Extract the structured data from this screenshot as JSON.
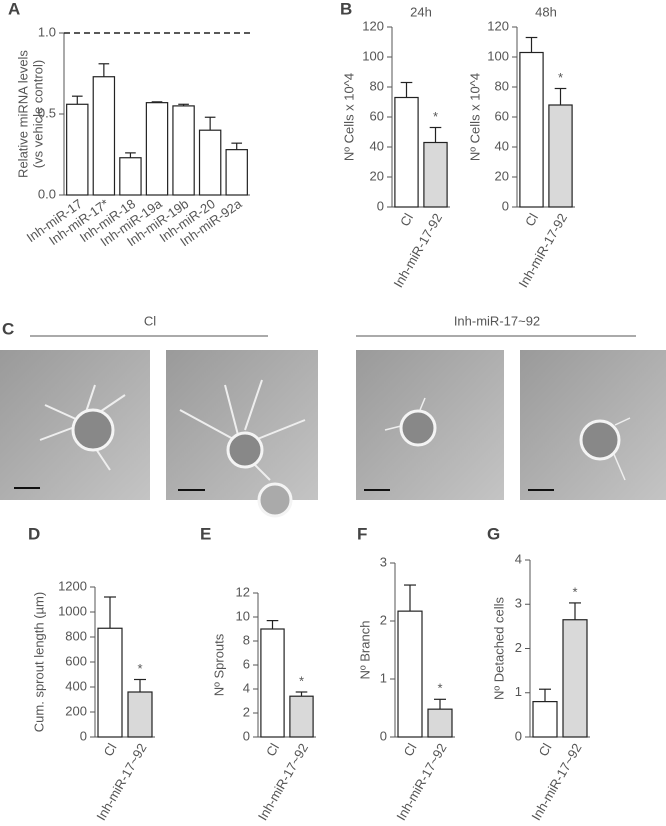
{
  "chart_data": [
    {
      "type": "bar",
      "panel": "A",
      "ylabel": [
        "Relative miRNA levels",
        "(vs vehicle control)"
      ],
      "categories": [
        "Inh-miR-17",
        "Inh-miR-17*",
        "Inh-miR-18",
        "Inh-miR-19a",
        "Inh-miR-19b",
        "Inh-miR-20",
        "Inh-miR-92a"
      ],
      "values": [
        0.56,
        0.73,
        0.23,
        0.57,
        0.55,
        0.4,
        0.28
      ],
      "errors": [
        0.05,
        0.08,
        0.03,
        0.005,
        0.01,
        0.08,
        0.04
      ],
      "colors": [
        "#ffffff",
        "#ffffff",
        "#ffffff",
        "#ffffff",
        "#ffffff",
        "#ffffff",
        "#ffffff"
      ],
      "reference_line": 1,
      "ylim": [
        0,
        1
      ],
      "yticks": [
        {
          "value": 0,
          "label": "0.0"
        },
        {
          "value": 0.5,
          "label": "0.5"
        },
        {
          "value": 1,
          "label": "1.0"
        }
      ]
    },
    {
      "type": "bar",
      "panel": "B",
      "title": "24h",
      "ylabel": "Nº Cells x 10^4",
      "categories": [
        "Cl",
        "Inh-miR-17-92"
      ],
      "values": [
        73,
        43
      ],
      "errors": [
        10,
        10
      ],
      "colors": [
        "#ffffff",
        "#d9d9d9"
      ],
      "significance": [
        null,
        "*"
      ],
      "ylim": [
        0,
        120
      ],
      "yticks": [
        0,
        20,
        40,
        60,
        80,
        100,
        120
      ]
    },
    {
      "type": "bar",
      "title": "48h",
      "ylabel": "Nº Cells x 10^4",
      "categories": [
        "Cl",
        "Inh-miR-17-92"
      ],
      "values": [
        103,
        68
      ],
      "errors": [
        10,
        11
      ],
      "colors": [
        "#ffffff",
        "#d9d9d9"
      ],
      "significance": [
        null,
        "*"
      ],
      "ylim": [
        0,
        120
      ],
      "yticks": [
        0,
        20,
        40,
        60,
        80,
        100,
        120
      ]
    },
    {
      "type": "bar",
      "panel": "D",
      "ylabel": "Cum. sprout length (µm)",
      "categories": [
        "Cl",
        "Inh-miR-17~92"
      ],
      "values": [
        870,
        360
      ],
      "errors": [
        250,
        100
      ],
      "colors": [
        "#ffffff",
        "#d9d9d9"
      ],
      "significance": [
        null,
        "*"
      ],
      "ylim": [
        0,
        1200
      ],
      "yticks": [
        0,
        200,
        400,
        600,
        800,
        1000,
        1200
      ]
    },
    {
      "type": "bar",
      "panel": "E",
      "ylabel": "Nº Sprouts",
      "categories": [
        "Cl",
        "Inh-miR-17~92"
      ],
      "values": [
        9.0,
        3.4
      ],
      "errors": [
        0.7,
        0.35
      ],
      "colors": [
        "#ffffff",
        "#d9d9d9"
      ],
      "significance": [
        null,
        "*"
      ],
      "ylim": [
        0,
        12
      ],
      "yticks": [
        0,
        2,
        4,
        6,
        8,
        10,
        12
      ]
    },
    {
      "type": "bar",
      "panel": "F",
      "ylabel": "Nº Branch",
      "categories": [
        "Cl",
        "Inh-miR-17~92"
      ],
      "values": [
        2.17,
        0.48
      ],
      "errors": [
        0.45,
        0.17
      ],
      "colors": [
        "#ffffff",
        "#d9d9d9"
      ],
      "significance": [
        null,
        "*"
      ],
      "ylim": [
        0,
        3
      ],
      "yticks": [
        0,
        1,
        2,
        3
      ]
    },
    {
      "type": "bar",
      "panel": "G",
      "ylabel": "Nº Detached cells",
      "categories": [
        "Cl",
        "Inh-miR-17~92"
      ],
      "values": [
        0.8,
        2.65
      ],
      "errors": [
        0.28,
        0.38
      ],
      "colors": [
        "#ffffff",
        "#d9d9d9"
      ],
      "significance": [
        null,
        "*"
      ],
      "ylim": [
        0,
        4
      ],
      "yticks": [
        0,
        1,
        2,
        3,
        4
      ]
    }
  ],
  "panel_c": {
    "panel": "C",
    "groups": [
      "Cl",
      "Inh-miR-17~92"
    ]
  }
}
